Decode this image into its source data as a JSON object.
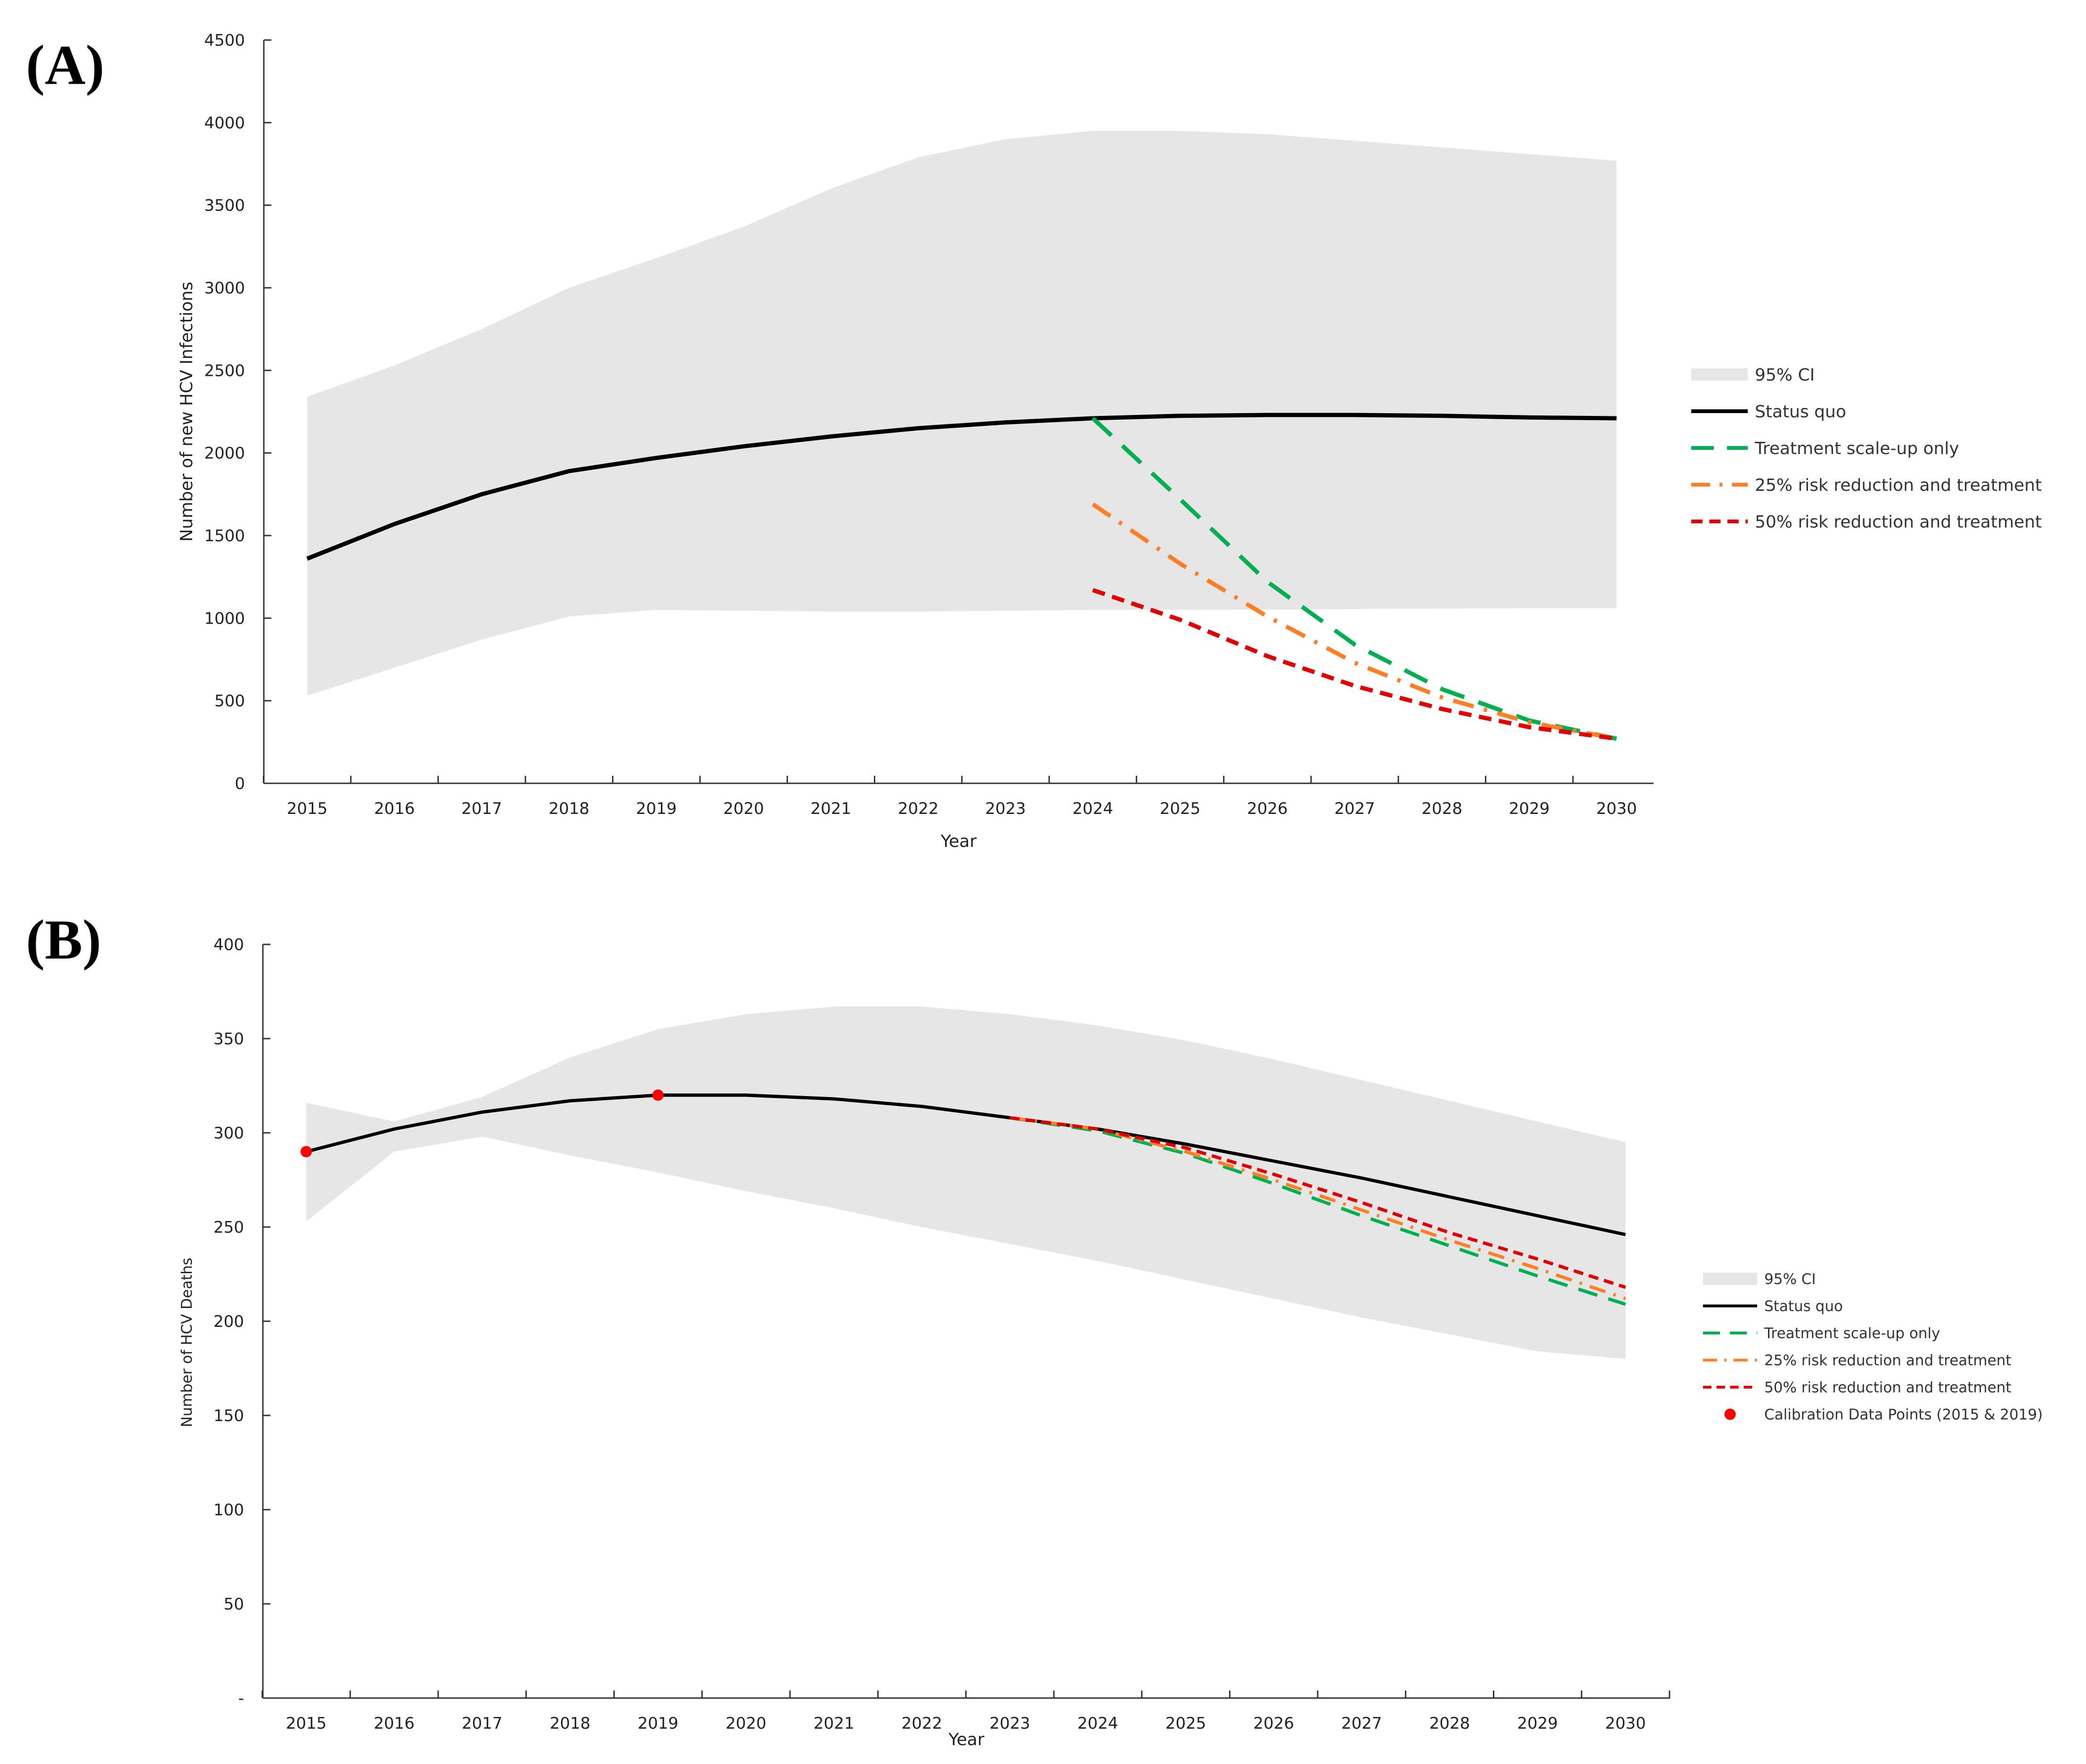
{
  "chart_data": [
    {
      "type": "line",
      "panel_label": "(A)",
      "title": "",
      "xlabel": "Year",
      "ylabel": "Number of new HCV Infections",
      "ylim": [
        0,
        4500
      ],
      "yticks": [
        0,
        500,
        1000,
        1500,
        2000,
        2500,
        3000,
        3500,
        4000,
        4500
      ],
      "ytick_labels": [
        "0",
        "500",
        "1000",
        "1500",
        "2000",
        "2500",
        "3000",
        "3500",
        "4000",
        "4500"
      ],
      "xlim": [
        2014.5,
        2030.5
      ],
      "categories": [
        "2015",
        "2016",
        "2017",
        "2018",
        "2019",
        "2020",
        "2021",
        "2022",
        "2023",
        "2024",
        "2025",
        "2026",
        "2027",
        "2028",
        "2029",
        "2030"
      ],
      "grid": false,
      "legend_position": "right",
      "ci_band": {
        "name": "95% CI",
        "color": "#e6e6e6",
        "x": [
          2015,
          2016,
          2017,
          2018,
          2019,
          2020,
          2021,
          2022,
          2023,
          2024,
          2025,
          2026,
          2027,
          2028,
          2029,
          2030
        ],
        "lower": [
          530,
          700,
          870,
          1010,
          1050,
          1045,
          1040,
          1040,
          1045,
          1050,
          1050,
          1052,
          1055,
          1058,
          1060,
          1060
        ],
        "upper": [
          2340,
          2530,
          2750,
          3000,
          3180,
          3370,
          3600,
          3790,
          3900,
          3950,
          3950,
          3930,
          3890,
          3850,
          3810,
          3770
        ]
      },
      "series": [
        {
          "name": "Status quo",
          "color": "#000000",
          "dash": "solid",
          "x": [
            2015,
            2016,
            2017,
            2018,
            2019,
            2020,
            2021,
            2022,
            2023,
            2024,
            2025,
            2026,
            2027,
            2028,
            2029,
            2030
          ],
          "values": [
            1360,
            1570,
            1750,
            1890,
            1970,
            2040,
            2100,
            2150,
            2185,
            2210,
            2225,
            2230,
            2230,
            2225,
            2215,
            2210
          ]
        },
        {
          "name": "Treatment scale-up only",
          "color": "#00b050",
          "dash": "long-dash",
          "x": [
            2024,
            2025,
            2026,
            2027,
            2028,
            2029,
            2030
          ],
          "values": [
            2210,
            1720,
            1220,
            840,
            570,
            380,
            270
          ]
        },
        {
          "name": "25% risk reduction and treatment",
          "color": "#ff7f27",
          "dash": "dash-dot",
          "x": [
            2024,
            2025,
            2026,
            2027,
            2028,
            2029,
            2030
          ],
          "values": [
            1690,
            1330,
            1010,
            730,
            520,
            370,
            270
          ]
        },
        {
          "name": "50% risk reduction and treatment",
          "color": "#e00000",
          "dash": "short-dash",
          "x": [
            2024,
            2025,
            2026,
            2027,
            2028,
            2029,
            2030
          ],
          "values": [
            1170,
            990,
            770,
            590,
            450,
            340,
            270
          ]
        }
      ],
      "legend": [
        {
          "label": "95% CI",
          "kind": "band",
          "color": "#e6e6e6"
        },
        {
          "label": "Status quo",
          "kind": "line",
          "color": "#000000",
          "dash": "solid"
        },
        {
          "label": "Treatment scale-up only",
          "kind": "line",
          "color": "#00b050",
          "dash": "long-dash"
        },
        {
          "label": "25% risk reduction and treatment",
          "kind": "line",
          "color": "#ff7f27",
          "dash": "dash-dot"
        },
        {
          "label": "50% risk reduction and treatment",
          "kind": "line",
          "color": "#e00000",
          "dash": "short-dash"
        }
      ]
    },
    {
      "type": "line",
      "panel_label": "(B)",
      "title": "",
      "xlabel": "Year",
      "ylabel": "Number of HCV Deaths",
      "ylim": [
        0,
        400
      ],
      "yticks": [
        0,
        50,
        100,
        150,
        200,
        250,
        300,
        350,
        400
      ],
      "ytick_labels": [
        "-",
        "50",
        "100",
        "150",
        "200",
        "250",
        "300",
        "350",
        "400"
      ],
      "xlim": [
        2014.5,
        2030.5
      ],
      "categories": [
        "2015",
        "2016",
        "2017",
        "2018",
        "2019",
        "2020",
        "2021",
        "2022",
        "2023",
        "2024",
        "2025",
        "2026",
        "2027",
        "2028",
        "2029",
        "2030"
      ],
      "grid": false,
      "legend_position": "right",
      "ci_band": {
        "name": "95% CI",
        "color": "#e6e6e6",
        "x": [
          2015,
          2016,
          2017,
          2018,
          2019,
          2020,
          2021,
          2022,
          2023,
          2024,
          2025,
          2026,
          2027,
          2028,
          2029,
          2030
        ],
        "lower": [
          253,
          290,
          298,
          288,
          279,
          269,
          260,
          250,
          241,
          232,
          222,
          212,
          202,
          193,
          184,
          180
        ],
        "upper": [
          316,
          306,
          319,
          340,
          355,
          363,
          367,
          367,
          363,
          357,
          349,
          339,
          328,
          317,
          306,
          295
        ]
      },
      "series": [
        {
          "name": "Status quo",
          "color": "#000000",
          "dash": "solid",
          "x": [
            2015,
            2016,
            2017,
            2018,
            2019,
            2020,
            2021,
            2022,
            2023,
            2024,
            2025,
            2026,
            2027,
            2028,
            2029,
            2030
          ],
          "values": [
            290,
            302,
            311,
            317,
            320,
            320,
            318,
            314,
            308,
            302,
            294,
            285,
            276,
            266,
            256,
            246
          ]
        },
        {
          "name": "Treatment scale-up only",
          "color": "#00b050",
          "dash": "long-dash",
          "x": [
            2023,
            2024,
            2025,
            2026,
            2027,
            2028,
            2029,
            2030
          ],
          "values": [
            308,
            301,
            289,
            273,
            256,
            240,
            224,
            209
          ]
        },
        {
          "name": "25% risk reduction and treatment",
          "color": "#ff7f27",
          "dash": "dash-dot",
          "x": [
            2023,
            2024,
            2025,
            2026,
            2027,
            2028,
            2029,
            2030
          ],
          "values": [
            308,
            302,
            290,
            275,
            259,
            243,
            228,
            212
          ]
        },
        {
          "name": "50% risk reduction and treatment",
          "color": "#e00000",
          "dash": "short-dash",
          "x": [
            2023,
            2024,
            2025,
            2026,
            2027,
            2028,
            2029,
            2030
          ],
          "values": [
            308,
            302,
            292,
            278,
            263,
            247,
            233,
            218
          ]
        }
      ],
      "calibration_points": {
        "name": "Calibration Data Points (2015 & 2019)",
        "color": "#ff0000",
        "x": [
          2015,
          2019
        ],
        "values": [
          290,
          320
        ]
      },
      "legend": [
        {
          "label": "95% CI",
          "kind": "band",
          "color": "#e6e6e6"
        },
        {
          "label": "Status quo",
          "kind": "line",
          "color": "#000000",
          "dash": "solid"
        },
        {
          "label": "Treatment scale-up only",
          "kind": "line",
          "color": "#00b050",
          "dash": "long-dash"
        },
        {
          "label": "25% risk reduction and treatment",
          "kind": "line",
          "color": "#ff7f27",
          "dash": "dash-dot"
        },
        {
          "label": "50% risk reduction and treatment",
          "kind": "line",
          "color": "#e00000",
          "dash": "short-dash"
        },
        {
          "label": "Calibration Data Points (2015 & 2019)",
          "kind": "dot",
          "color": "#ff0000"
        }
      ]
    }
  ]
}
